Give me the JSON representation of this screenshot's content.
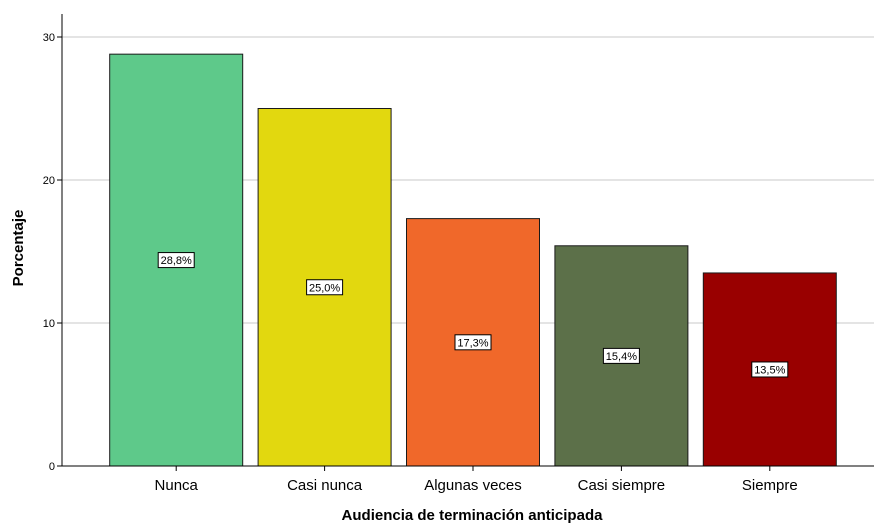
{
  "chart_data": {
    "type": "bar",
    "title": "",
    "xlabel": "Audiencia de terminación anticipada",
    "ylabel": "Porcentaje",
    "categories": [
      "Nunca",
      "Casi nunca",
      "Algunas veces",
      "Casi siempre",
      "Siempre"
    ],
    "values": [
      28.8,
      25.0,
      17.3,
      15.4,
      13.5
    ],
    "data_labels": [
      "28,8%",
      "25,0%",
      "17,3%",
      "15,4%",
      "13,5%"
    ],
    "colors": [
      "#5ec98a",
      "#e2d80f",
      "#f0682a",
      "#5c7049",
      "#990000"
    ],
    "ylim": [
      0,
      30
    ],
    "yticks": [
      0,
      10,
      20,
      30
    ],
    "ytick_labels": [
      "0",
      "10",
      "20",
      "30"
    ],
    "grid": true,
    "legend": "none"
  }
}
